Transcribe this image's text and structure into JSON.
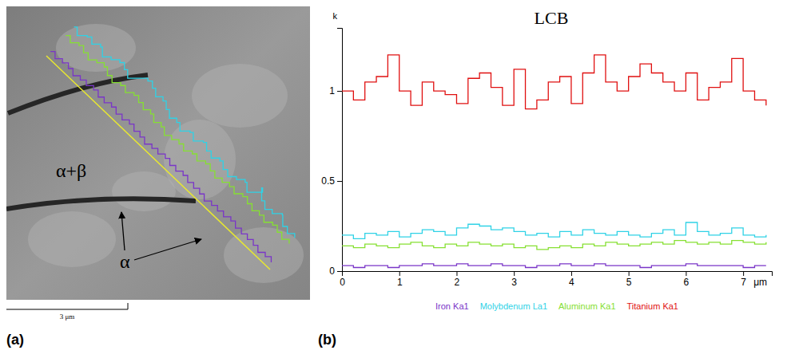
{
  "figure": {
    "panel_labels": [
      "(a)",
      "(b)"
    ]
  },
  "micrograph": {
    "phase_labels": [
      "α+β",
      "α"
    ],
    "scale_bar": "3 μm"
  },
  "chart_data": {
    "type": "line",
    "title": "LCB",
    "x_label": "μm",
    "y_label": "k",
    "x": [
      0,
      0.2,
      0.4,
      0.6,
      0.8,
      1.0,
      1.2,
      1.4,
      1.6,
      1.8,
      2.0,
      2.2,
      2.4,
      2.6,
      2.8,
      3.0,
      3.2,
      3.4,
      3.6,
      3.8,
      4.0,
      4.2,
      4.4,
      4.6,
      4.8,
      5.0,
      5.2,
      5.4,
      5.6,
      5.8,
      6.0,
      6.2,
      6.4,
      6.6,
      6.8,
      7.0,
      7.2,
      7.4
    ],
    "series": [
      {
        "name": "Iron Ka1",
        "color": "#7a35c8",
        "values": [
          0.03,
          0.02,
          0.03,
          0.03,
          0.02,
          0.03,
          0.03,
          0.04,
          0.03,
          0.03,
          0.04,
          0.03,
          0.03,
          0.04,
          0.03,
          0.03,
          0.02,
          0.03,
          0.03,
          0.04,
          0.03,
          0.03,
          0.04,
          0.03,
          0.03,
          0.03,
          0.02,
          0.03,
          0.03,
          0.03,
          0.04,
          0.03,
          0.03,
          0.03,
          0.03,
          0.02,
          0.03,
          0.03
        ]
      },
      {
        "name": "Molybdenum La1",
        "color": "#2fd2e6",
        "values": [
          0.2,
          0.18,
          0.21,
          0.2,
          0.22,
          0.19,
          0.21,
          0.23,
          0.22,
          0.2,
          0.24,
          0.26,
          0.25,
          0.23,
          0.24,
          0.22,
          0.2,
          0.21,
          0.19,
          0.22,
          0.2,
          0.23,
          0.21,
          0.2,
          0.22,
          0.2,
          0.19,
          0.21,
          0.23,
          0.2,
          0.27,
          0.22,
          0.2,
          0.21,
          0.24,
          0.2,
          0.19,
          0.2
        ]
      },
      {
        "name": "Aluminum Ka1",
        "color": "#86e032",
        "values": [
          0.14,
          0.13,
          0.15,
          0.14,
          0.13,
          0.15,
          0.16,
          0.14,
          0.13,
          0.15,
          0.14,
          0.16,
          0.15,
          0.14,
          0.15,
          0.13,
          0.14,
          0.12,
          0.13,
          0.14,
          0.13,
          0.15,
          0.14,
          0.16,
          0.15,
          0.14,
          0.15,
          0.16,
          0.15,
          0.17,
          0.16,
          0.15,
          0.16,
          0.15,
          0.17,
          0.16,
          0.15,
          0.16
        ]
      },
      {
        "name": "Titanium Ka1",
        "color": "#e01010",
        "values": [
          1.0,
          0.95,
          1.05,
          1.08,
          1.2,
          1.0,
          0.92,
          1.05,
          1.0,
          0.98,
          0.93,
          1.07,
          1.1,
          1.02,
          0.92,
          1.12,
          0.9,
          0.95,
          1.05,
          1.08,
          0.93,
          1.1,
          1.2,
          1.05,
          1.0,
          1.08,
          1.15,
          1.1,
          1.05,
          1.0,
          1.1,
          0.95,
          1.02,
          1.05,
          1.18,
          1.0,
          0.95,
          0.92
        ]
      }
    ],
    "xlim": [
      0,
      7.5
    ],
    "ylim": [
      0,
      1.35
    ],
    "xticks": [
      0,
      1,
      2,
      3,
      4,
      5,
      6,
      7
    ],
    "yticks": [
      0,
      0.5,
      1
    ],
    "grid": false,
    "legend": "bottom",
    "line_style": "step"
  }
}
